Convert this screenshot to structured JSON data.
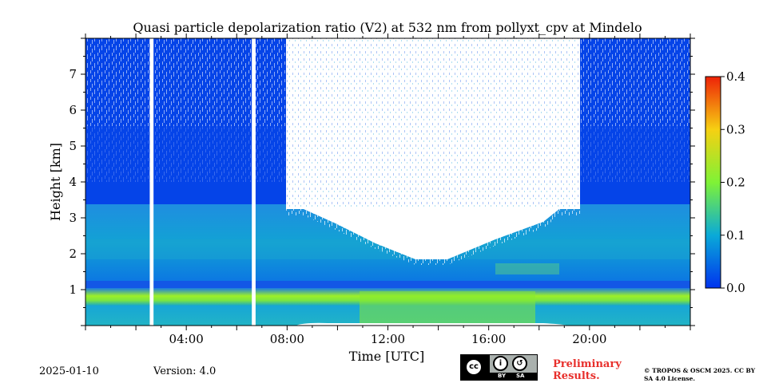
{
  "chart_data": {
    "type": "heatmap",
    "title": "Quasi particle depolarization ratio (V2) at 532 nm from pollyxt_cpv at Mindelo",
    "xlabel": "Time [UTC]",
    "ylabel": "Height [km]",
    "x_ticks": [
      "04:00",
      "08:00",
      "12:00",
      "16:00",
      "20:00"
    ],
    "x_tick_hours": [
      4,
      8,
      12,
      16,
      20
    ],
    "xlim_hours": [
      0,
      24
    ],
    "y_ticks": [
      1,
      2,
      3,
      4,
      5,
      6,
      7
    ],
    "ylim_km": [
      0,
      8
    ],
    "colorbar": {
      "ticks": [
        "0.0",
        "0.1",
        "0.2",
        "0.3",
        "0.4"
      ],
      "tick_values": [
        0.0,
        0.1,
        0.2,
        0.3,
        0.4
      ],
      "range": [
        0.0,
        0.4
      ],
      "colormap": "jet"
    },
    "data_gaps_hours": [
      [
        2.55,
        2.7
      ],
      [
        6.6,
        6.75
      ]
    ],
    "layers": [
      {
        "height_km": [
          0.6,
          1.0
        ],
        "value": 0.17
      },
      {
        "height_km": [
          1.0,
          3.3
        ],
        "value": 0.08
      },
      {
        "height_km": [
          3.3,
          8.0
        ],
        "value": 0.03
      }
    ],
    "no_signal_region": {
      "time_hours": [
        8.0,
        19.5
      ],
      "height_km": [
        3.3,
        8.0
      ]
    }
  },
  "footer": {
    "date": "2025-01-10",
    "version": "Version: 4.0",
    "preliminary": "Preliminary Results.",
    "copyright": "© TROPOS & OSCM 2025. CC BY SA 4.0 License.",
    "license_badge": {
      "by": "BY",
      "sa": "SA"
    }
  }
}
